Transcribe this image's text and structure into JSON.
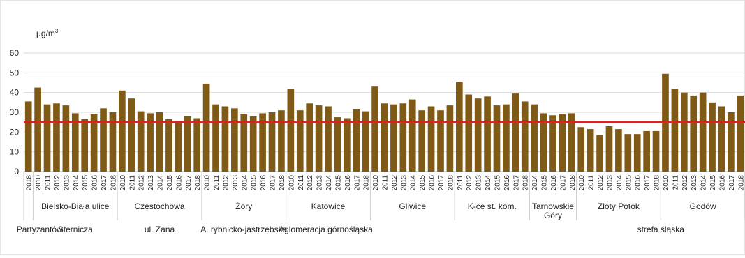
{
  "chart_data": {
    "type": "bar",
    "unit": "μg/m",
    "unit_sup": "3",
    "ylim": [
      0,
      60
    ],
    "yticks": [
      0,
      10,
      20,
      30,
      40,
      50,
      60
    ],
    "grid": true,
    "colors": {
      "bar": "#7f5a17",
      "threshold": "#e02020",
      "grid": "#d9d9d9",
      "axis": "#bfbfbf"
    },
    "threshold": 25,
    "groups": [
      {
        "station": "",
        "years": [
          "2018"
        ],
        "values": [
          35.5
        ]
      },
      {
        "station": "Bielsko-Biała ulice",
        "years": [
          "2010",
          "2011",
          "2012",
          "2013",
          "2014",
          "2015",
          "2016",
          "2017",
          "2018"
        ],
        "values": [
          42.5,
          34,
          34.5,
          33.5,
          29.5,
          26.5,
          29,
          32,
          30
        ]
      },
      {
        "station": "Częstochowa",
        "years": [
          "2010",
          "2011",
          "2012",
          "2013",
          "2014",
          "2015",
          "2016",
          "2017",
          "2018"
        ],
        "values": [
          41,
          37,
          30.5,
          29.5,
          30,
          26.5,
          25.5,
          28,
          27
        ]
      },
      {
        "station": "Żory",
        "years": [
          "2010",
          "2011",
          "2012",
          "2013",
          "2014",
          "2015",
          "2016",
          "2017",
          "2018"
        ],
        "values": [
          44.5,
          34,
          33,
          32,
          29,
          28,
          29.5,
          30,
          31
        ]
      },
      {
        "station": "Katowice",
        "years": [
          "2010",
          "2011",
          "2012",
          "2013",
          "2014",
          "2015",
          "2016",
          "2017",
          "2018"
        ],
        "values": [
          42,
          31,
          34.5,
          33.5,
          33,
          27.5,
          27,
          31.5,
          30.5
        ]
      },
      {
        "station": "Gliwice",
        "years": [
          "2010",
          "2011",
          "2012",
          "2013",
          "2014",
          "2015",
          "2016",
          "2017",
          "2018"
        ],
        "values": [
          43,
          34.5,
          34,
          34.5,
          36.5,
          31,
          33,
          31,
          33.5
        ]
      },
      {
        "station": "K-ce st. kom.",
        "years": [
          "2011",
          "2012",
          "2013",
          "2014",
          "2015",
          "2016",
          "2017",
          "2018"
        ],
        "values": [
          45.5,
          39,
          37,
          38,
          33.5,
          34,
          39.5,
          35.5
        ]
      },
      {
        "station": "Tarnowskie Góry",
        "years": [
          "2014",
          "2015",
          "2016",
          "2017",
          "2018"
        ],
        "values": [
          34,
          29.5,
          28.5,
          29,
          29.5
        ]
      },
      {
        "station": "Złoty Potok",
        "years": [
          "2010",
          "2011",
          "2012",
          "2013",
          "2014",
          "2015",
          "2016",
          "2017",
          "2018"
        ],
        "values": [
          22.5,
          21.5,
          18.5,
          23,
          21.5,
          19,
          19,
          20.5,
          20.5
        ]
      },
      {
        "station": "Godów",
        "years": [
          "2010",
          "2011",
          "2012",
          "2013",
          "2014",
          "2015",
          "2016",
          "2017",
          "2018"
        ],
        "values": [
          49.5,
          42,
          40,
          38.5,
          40,
          35,
          33,
          30,
          38.5
        ]
      }
    ],
    "level2_labels": [
      "Partyzantów",
      "Sternicza",
      "ul. Zana",
      "A. rybnicko-jastrzębska"
    ],
    "level3_labels": [
      "Aglomeracja górnośląska",
      "strefa śląska"
    ]
  }
}
